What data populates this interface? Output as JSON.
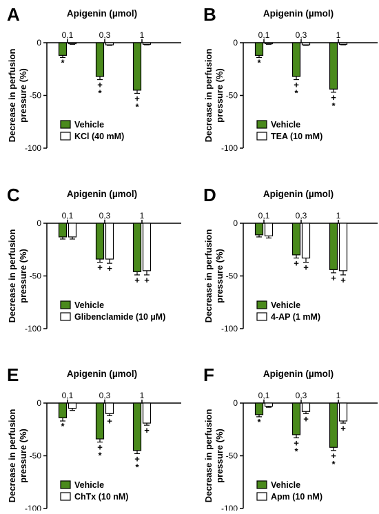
{
  "figure": {
    "y_axis_label_line1": "Decrease in perfusion",
    "y_axis_label_line2": "pressure (%)",
    "x_title": "Apigenin (µmol)",
    "doses": [
      "0,1",
      "0,3",
      "1"
    ],
    "y_ticks": [
      "0",
      "-50",
      "-100"
    ],
    "colors": {
      "vehicle": "#4a8a1c",
      "treatment": "#ffffff",
      "stroke": "#000000"
    }
  },
  "chart_data": [
    {
      "panel": "A",
      "type": "bar",
      "title": "Apigenin (µmol)",
      "ylabel": "Decrease in perfusion pressure (%)",
      "ylim": [
        -100,
        0
      ],
      "categories": [
        "0,1",
        "0,3",
        "1"
      ],
      "legend": "bottom-left",
      "series": [
        {
          "name": "Vehicle",
          "values": [
            -12,
            -32,
            -45
          ],
          "errors": [
            2,
            3,
            3
          ],
          "marks": [
            "*",
            "+*",
            "+*"
          ]
        },
        {
          "name": "KCl (40 mM)",
          "values": [
            -1,
            -2,
            -1.5
          ],
          "errors": [
            0.5,
            0.5,
            0.5
          ],
          "marks": [
            "",
            "",
            ""
          ]
        }
      ]
    },
    {
      "panel": "B",
      "type": "bar",
      "title": "Apigenin (µmol)",
      "ylabel": "Decrease in perfusion pressure (%)",
      "ylim": [
        -100,
        0
      ],
      "categories": [
        "0,1",
        "0,3",
        "1"
      ],
      "legend": "bottom-left",
      "series": [
        {
          "name": "Vehicle",
          "values": [
            -12,
            -32,
            -44
          ],
          "errors": [
            2,
            3,
            3
          ],
          "marks": [
            "*",
            "+*",
            "+*"
          ]
        },
        {
          "name": "TEA (10 mM)",
          "values": [
            -1,
            -2,
            -1.5
          ],
          "errors": [
            0.5,
            0.5,
            0.5
          ],
          "marks": [
            "",
            "",
            ""
          ]
        }
      ]
    },
    {
      "panel": "C",
      "type": "bar",
      "title": "Apigenin (µmol)",
      "ylabel": "Decrease in perfusion pressure (%)",
      "ylim": [
        -100,
        0
      ],
      "categories": [
        "0,1",
        "0,3",
        "1"
      ],
      "legend": "bottom-left",
      "series": [
        {
          "name": "Vehicle",
          "values": [
            -13,
            -34,
            -46
          ],
          "errors": [
            2,
            3,
            3
          ],
          "marks": [
            "",
            "+",
            "+"
          ]
        },
        {
          "name": "Glibenclamide (10 µM)",
          "values": [
            -13,
            -34,
            -45
          ],
          "errors": [
            2,
            4,
            4
          ],
          "marks": [
            "",
            "+",
            "+"
          ]
        }
      ]
    },
    {
      "panel": "D",
      "type": "bar",
      "title": "Apigenin (µmol)",
      "ylabel": "Decrease in perfusion pressure (%)",
      "ylim": [
        -100,
        0
      ],
      "categories": [
        "0,1",
        "0,3",
        "1"
      ],
      "legend": "bottom-left",
      "series": [
        {
          "name": "Vehicle",
          "values": [
            -11,
            -30,
            -44
          ],
          "errors": [
            2,
            3,
            3
          ],
          "marks": [
            "",
            "+",
            "+"
          ]
        },
        {
          "name": "4-AP (1 mM)",
          "values": [
            -12,
            -33,
            -45
          ],
          "errors": [
            2,
            4,
            4
          ],
          "marks": [
            "",
            "+",
            "+"
          ]
        }
      ]
    },
    {
      "panel": "E",
      "type": "bar",
      "title": "Apigenin (µmol)",
      "ylabel": "Decrease in perfusion pressure (%)",
      "ylim": [
        -100,
        0
      ],
      "categories": [
        "0,1",
        "0,3",
        "1"
      ],
      "legend": "bottom-left",
      "series": [
        {
          "name": "Vehicle",
          "values": [
            -14,
            -34,
            -45
          ],
          "errors": [
            3,
            3,
            3
          ],
          "marks": [
            "*",
            "+*",
            "+*"
          ]
        },
        {
          "name": "ChTx (10 nM)",
          "values": [
            -5,
            -10,
            -19
          ],
          "errors": [
            2,
            2,
            2
          ],
          "marks": [
            "",
            "+",
            "+"
          ]
        }
      ]
    },
    {
      "panel": "F",
      "type": "bar",
      "title": "Apigenin (µmol)",
      "ylabel": "Decrease in perfusion pressure (%)",
      "ylim": [
        -100,
        0
      ],
      "categories": [
        "0,1",
        "0,3",
        "1"
      ],
      "legend": "bottom-left",
      "series": [
        {
          "name": "Vehicle",
          "values": [
            -11,
            -30,
            -42
          ],
          "errors": [
            2,
            3,
            3
          ],
          "marks": [
            "*",
            "+*",
            "+*"
          ]
        },
        {
          "name": "Apm (10 nM)",
          "values": [
            -3,
            -8,
            -17
          ],
          "errors": [
            1,
            2,
            2
          ],
          "marks": [
            "",
            "+",
            "+"
          ]
        }
      ]
    }
  ]
}
